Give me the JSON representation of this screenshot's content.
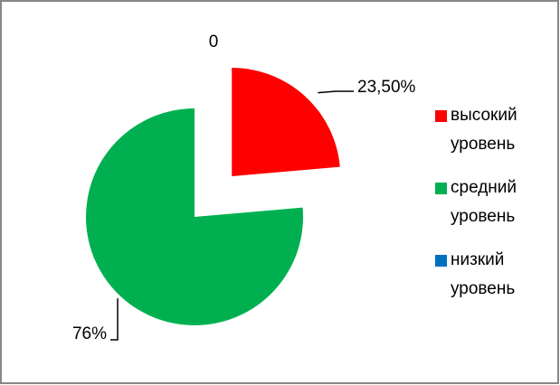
{
  "chart_data": {
    "type": "pie",
    "categories": [
      "высокий уровень",
      "средний уровень",
      "низкий уровень"
    ],
    "values": [
      23.5,
      76,
      0
    ],
    "value_labels": [
      "23,50%",
      "76%",
      "0"
    ],
    "colors": [
      "#ff0000",
      "#00b050",
      "#0070c0"
    ],
    "legend": "right"
  }
}
